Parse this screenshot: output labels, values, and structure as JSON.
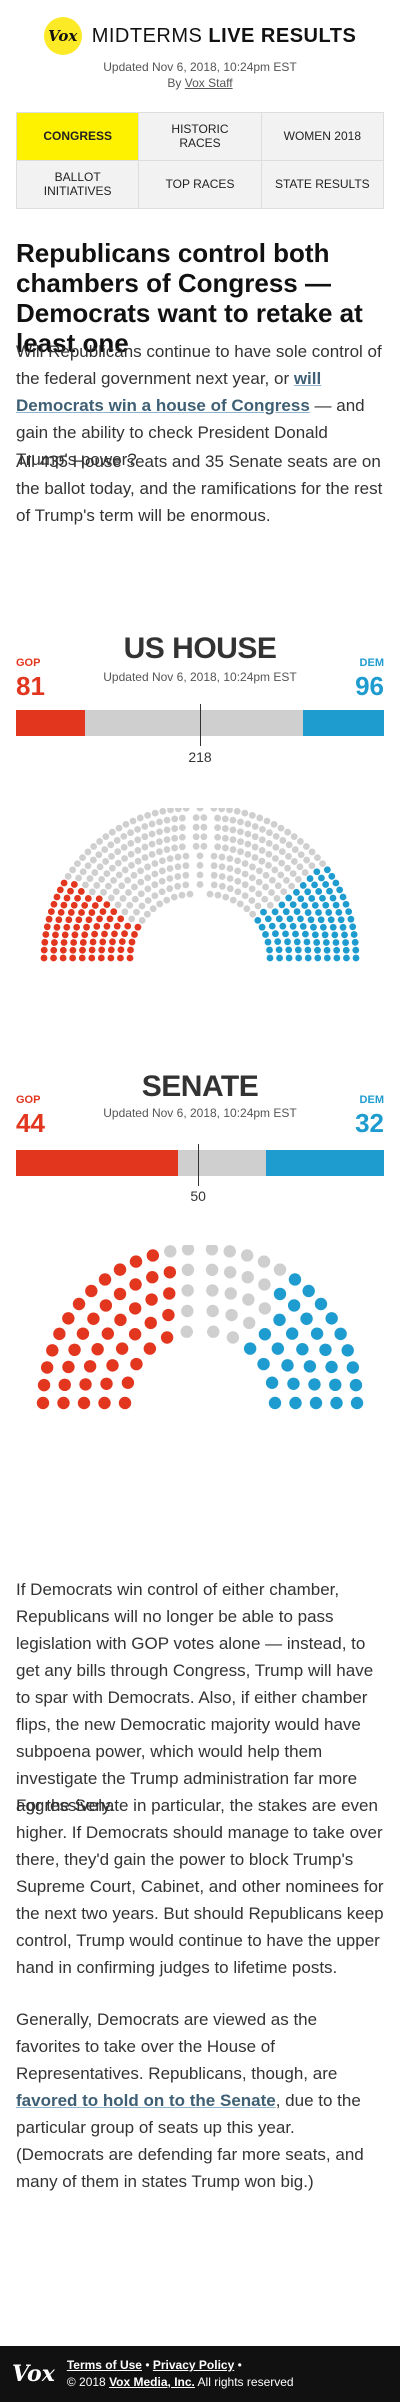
{
  "header": {
    "logo": "Vox",
    "title_light": "MIDTERMS",
    "title_bold": "LIVE RESULTS",
    "updated": "Updated Nov 6, 2018, 10:24pm EST",
    "byline_prefix": "By",
    "byline_author": "Vox Staff"
  },
  "tabs": [
    {
      "label": "CONGRESS",
      "active": true
    },
    {
      "label": "HISTORIC RACES",
      "active": false
    },
    {
      "label": "WOMEN 2018",
      "active": false
    },
    {
      "label": "BALLOT INITIATIVES",
      "active": false
    },
    {
      "label": "TOP RACES",
      "active": false
    },
    {
      "label": "STATE RESULTS",
      "active": false
    }
  ],
  "article": {
    "headline": "Republicans control both chambers of Congress — Democrats want to retake at least one",
    "p1_a": "Will Republicans continue to have sole control of the federal government next year, or ",
    "p1_link": "will Democrats win a house of Congress",
    "p1_b": " — and gain the ability to check President Donald Trump's power?",
    "p2": "All 435 House seats and 35 Senate seats are on the ballot today, and the ramifications for the rest of Trump's term will be enormous.",
    "p3": "If Democrats win control of either chamber, Republicans will no longer be able to pass legislation with GOP votes alone — instead, to get any bills through Congress, Trump will have to spar with Democrats. Also, if either chamber flips, the new Democratic majority would have subpoena power, which would help them investigate the Trump administration far more aggressively.",
    "p4": "For the Senate in particular, the stakes are even higher. If Democrats should manage to take over there, they'd gain the power to block Trump's Supreme Court, Cabinet, and other nominees for the next two years. But should Republicans keep control, Trump would continue to have the upper hand in confirming judges to lifetime posts.",
    "p5_a": "Generally, Democrats are viewed as the favorites to take over the House of Representatives. Republicans, though, are ",
    "p5_link": "favored to hold on to the Senate",
    "p5_b": ", due to the particular group of seats up this year. (Democrats are defending far more seats, and many of them in states Trump won big.)"
  },
  "house": {
    "title": "US HOUSE",
    "updated": "Updated Nov 6, 2018, 10:24pm EST",
    "gop_label": "GOP",
    "dem_label": "DEM",
    "gop_seats": 81,
    "dem_seats": 96,
    "total_seats": 435,
    "majority": 218,
    "majority_label": "218"
  },
  "senate": {
    "title": "SENATE",
    "updated": "Updated Nov 6, 2018, 10:24pm EST",
    "gop_label": "GOP",
    "dem_label": "DEM",
    "gop_seats": 44,
    "dem_seats": 32,
    "total_seats": 100,
    "majority": 50,
    "majority_label": "50"
  },
  "colors": {
    "gop": "#e2361f",
    "dem": "#1f9ccf",
    "undecided": "#cfcfcf",
    "tab_active": "#fff200"
  },
  "footer": {
    "logo": "Vox",
    "terms": "Terms of Use",
    "sep": " • ",
    "privacy": "Privacy Policy",
    "copyright_pre": "© 2018 ",
    "company": "Vox Media, Inc.",
    "copyright_post": " All rights reserved"
  }
}
